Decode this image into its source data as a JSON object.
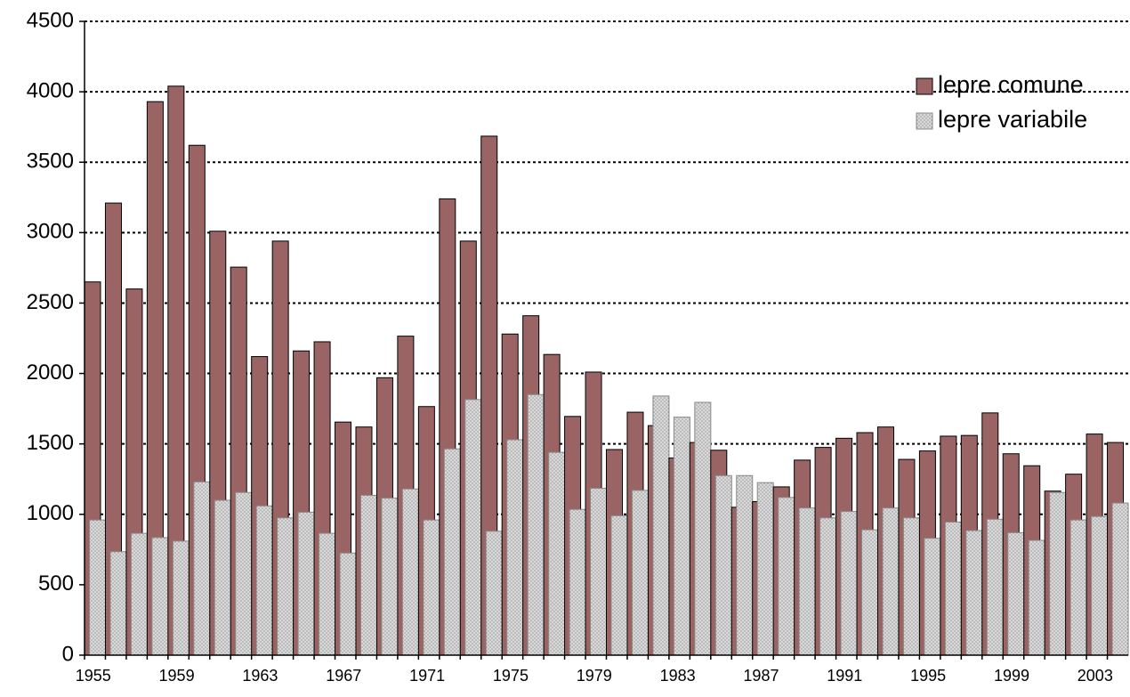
{
  "chart_data": {
    "type": "bar",
    "categories": [
      "1955",
      null,
      null,
      null,
      "1959",
      null,
      null,
      null,
      "1963",
      null,
      null,
      null,
      "1967",
      null,
      null,
      null,
      "1971",
      null,
      null,
      null,
      "1975",
      null,
      null,
      null,
      "1979",
      null,
      null,
      null,
      "1983",
      null,
      null,
      null,
      "1987",
      null,
      null,
      null,
      "1991",
      null,
      null,
      null,
      "1995",
      null,
      null,
      null,
      "1999",
      null,
      null,
      null,
      "2003",
      null
    ],
    "series": [
      {
        "name": "lepre comune",
        "color": "#9b6464",
        "values": [
          2650,
          3210,
          2600,
          3930,
          4040,
          3620,
          3010,
          2755,
          2120,
          2940,
          2160,
          2225,
          1655,
          1620,
          1970,
          2265,
          1765,
          3240,
          2940,
          3685,
          2280,
          2410,
          2135,
          1695,
          2010,
          1460,
          1725,
          1630,
          1400,
          1510,
          1455,
          1050,
          1090,
          1195,
          1385,
          1475,
          1540,
          1580,
          1620,
          1390,
          1450,
          1555,
          1560,
          1720,
          1430,
          1345,
          1165,
          1285,
          1570,
          1510
        ]
      },
      {
        "name": "lepre variabile",
        "color": "#d9d9d9",
        "pattern": "dots",
        "values": [
          960,
          735,
          865,
          835,
          810,
          1230,
          1100,
          1155,
          1060,
          975,
          1015,
          865,
          725,
          1135,
          1115,
          1180,
          960,
          1465,
          1815,
          880,
          1530,
          1850,
          1440,
          1035,
          1185,
          990,
          1170,
          1840,
          1690,
          1795,
          1275,
          1275,
          1225,
          1120,
          1045,
          975,
          1020,
          890,
          1045,
          975,
          830,
          945,
          885,
          965,
          870,
          815,
          1155,
          960,
          985,
          1080
        ]
      }
    ],
    "ylim": [
      0,
      4500
    ],
    "yticks": [
      0,
      500,
      1000,
      1500,
      2000,
      2500,
      3000,
      3500,
      4000,
      4500
    ],
    "grid": true,
    "legend": "upper right"
  }
}
